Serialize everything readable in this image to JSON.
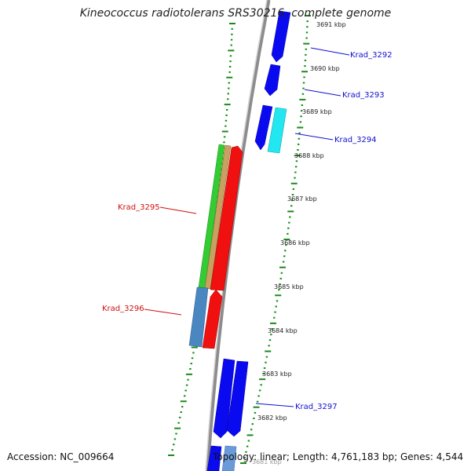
{
  "title": "Kineococcus radiotolerans SRS30216, complete genome",
  "footer": {
    "accession": "Accession: NC_009664",
    "topology": "Topology: linear; Length: 4,761,183 bp; Genes: 4,544"
  },
  "ticks": [
    "3691 kbp",
    "3690 kbp",
    "3689 kbp",
    "3688 kbp",
    "3687 kbp",
    "3686 kbp",
    "3685 kbp",
    "3684 kbp",
    "3683 kbp",
    "3682 kbp",
    "3681 kbp"
  ],
  "gene_labels": [
    {
      "name": "Krad_3292",
      "color": "#1010d0",
      "side": "right"
    },
    {
      "name": "Krad_3293",
      "color": "#1010d0",
      "side": "right"
    },
    {
      "name": "Krad_3294",
      "color": "#1010d0",
      "side": "right"
    },
    {
      "name": "Krad_3295",
      "color": "#d01010",
      "side": "left"
    },
    {
      "name": "Krad_3296",
      "color": "#d01010",
      "side": "left"
    },
    {
      "name": "Krad_3297",
      "color": "#1010d0",
      "side": "right"
    }
  ],
  "colors": {
    "blue": "#0a0af0",
    "cyan": "#22e6f0",
    "red": "#f01010",
    "green": "#33cc33",
    "tan": "#c8a060",
    "steel": "#4a86c0",
    "backbone": "#8c8c8c",
    "dots": "#1a8a1a"
  }
}
